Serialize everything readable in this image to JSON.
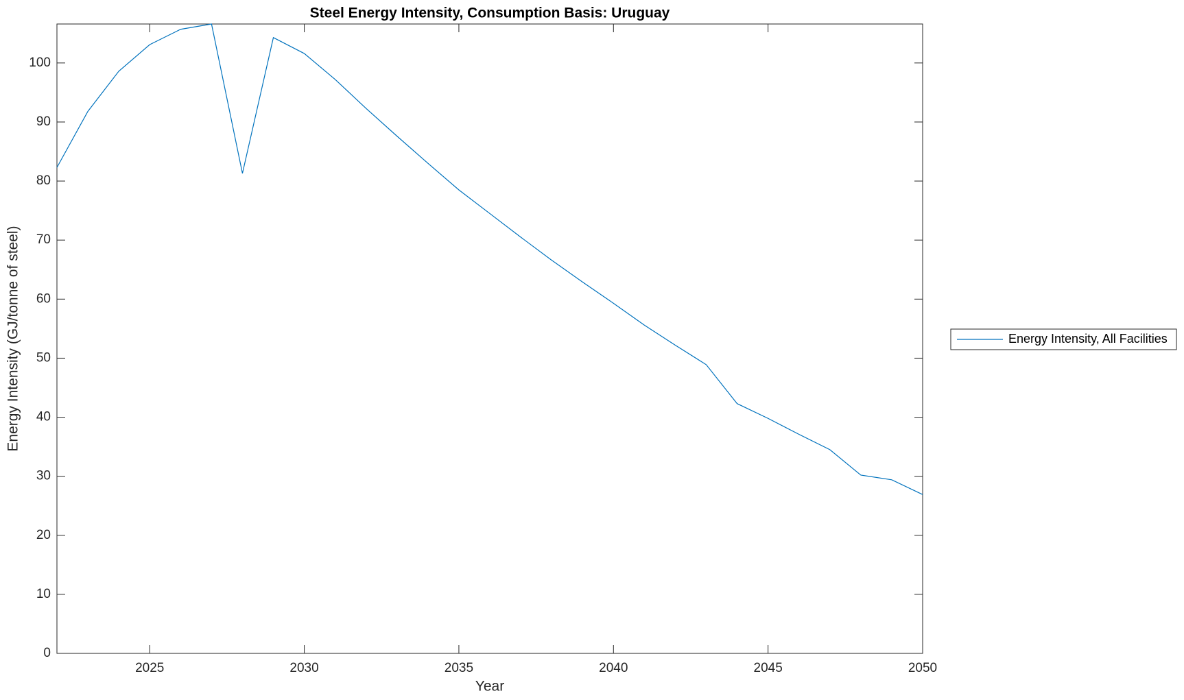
{
  "chart_data": {
    "type": "line",
    "title": "Steel Energy Intensity, Consumption Basis: Uruguay",
    "x_label": "Year",
    "y_label": "Energy Intensity (GJ/tonne of steel)",
    "x": [
      2022,
      2023,
      2024,
      2025,
      2026,
      2027,
      2028,
      2029,
      2030,
      2031,
      2032,
      2033,
      2034,
      2035,
      2036,
      2037,
      2038,
      2039,
      2040,
      2041,
      2042,
      2043,
      2044,
      2045,
      2046,
      2047,
      2048,
      2049,
      2050
    ],
    "series": [
      {
        "name": "Energy Intensity, All Facilities",
        "color": "#0072bd",
        "values": [
          82.3,
          91.8,
          98.6,
          103.1,
          105.7,
          106.6,
          81.3,
          104.3,
          101.6,
          97.2,
          92.3,
          87.6,
          83.0,
          78.5,
          74.5,
          70.5,
          66.6,
          62.9,
          59.3,
          55.6,
          52.2,
          48.9,
          42.3,
          39.8,
          37.1,
          34.5,
          30.2,
          29.4,
          26.9
        ]
      }
    ],
    "xlim": [
      2022,
      2050
    ],
    "xticks": [
      2025,
      2030,
      2035,
      2040,
      2045,
      2050
    ],
    "ylim": [
      0,
      106.6
    ],
    "yticks": [
      0,
      10,
      20,
      30,
      40,
      50,
      60,
      70,
      80,
      90,
      100
    ],
    "legend": "right"
  }
}
